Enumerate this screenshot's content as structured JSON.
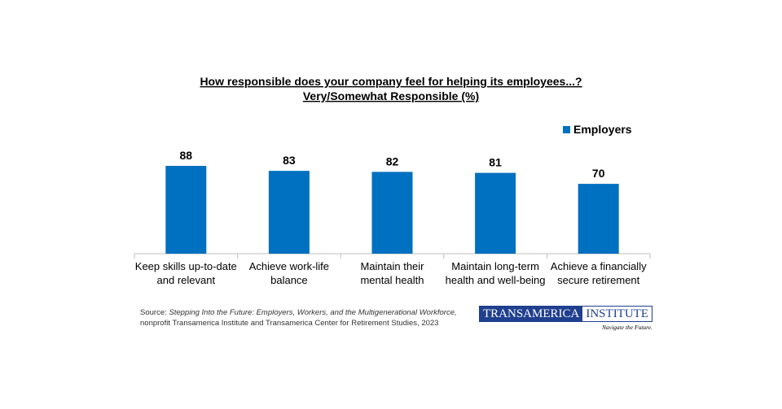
{
  "chart_data": {
    "type": "bar",
    "title": "How responsible does your company feel for helping its employees...?",
    "subtitle": "Very/Somewhat Responsible (%)",
    "categories": [
      [
        "Keep skills up-to-date",
        "and relevant"
      ],
      [
        "Achieve work-life",
        "balance"
      ],
      [
        "Maintain their",
        "mental health"
      ],
      [
        "Maintain long-term",
        "health and well-being"
      ],
      [
        "Achieve a financially",
        "secure retirement"
      ]
    ],
    "series": [
      {
        "name": "Employers",
        "values": [
          88,
          83,
          82,
          81,
          70
        ],
        "color": "#0070c0"
      }
    ],
    "ylim": [
      0,
      100
    ],
    "grid": false,
    "legend": "top-right",
    "data_labels": true
  },
  "source": {
    "prefix": "Source: ",
    "title": "Stepping Into the Future: Employers, Workers, and the Multigenerational Workforce,",
    "line2": "nonprofit Transamerica Institute and Transamerica Center for Retirement Studies, 2023"
  },
  "logo": {
    "part1": "TRANSAMERICA",
    "part2": "INSTITUTE",
    "tagline": "Navigate the Future."
  }
}
